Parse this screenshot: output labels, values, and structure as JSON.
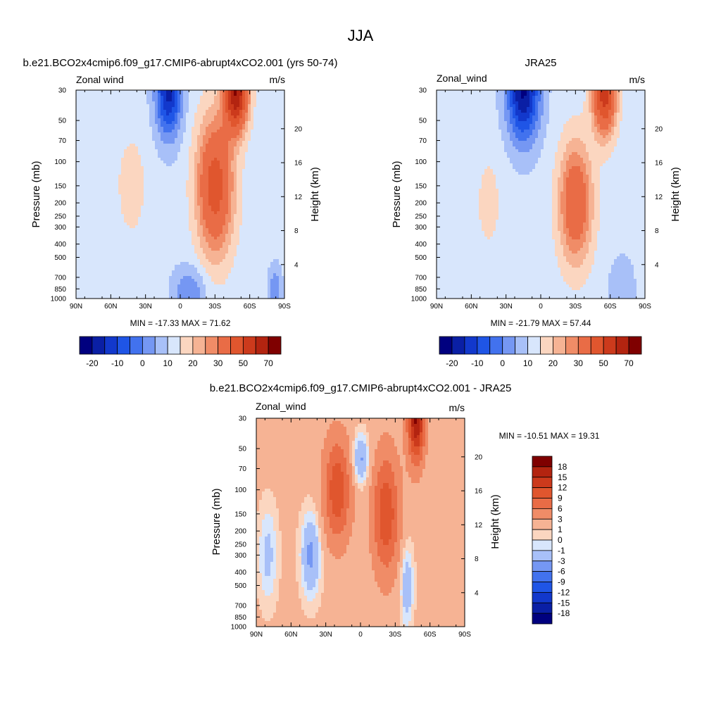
{
  "figure": {
    "title": "JJA"
  },
  "colors": {
    "neg": [
      "#00007f",
      "#0a1fa5",
      "#1238cc",
      "#1f55e6",
      "#4272ee",
      "#7597f3",
      "#a8c0f8",
      "#d8e6fc"
    ],
    "zero": "#fff0e6",
    "pos": [
      "#fbd6c0",
      "#f6b394",
      "#f08c67",
      "#e96c46",
      "#e0562e",
      "#cc3a1c",
      "#b32410",
      "#7f0000"
    ]
  },
  "chart_data": [
    {
      "type": "heatmap",
      "title": "b.e21.BCO2x4cmip6.f09_g17.CMIP6-abrupt4xCO2.001 (yrs 50-74)",
      "left_label": "Zonal wind",
      "right_label": "m/s",
      "xlabel": "",
      "ylabel": "Pressure (mb)",
      "y2label": "Height (km)",
      "x_ticks": [
        "90N",
        "60N",
        "30N",
        "0",
        "30S",
        "60S",
        "90S"
      ],
      "y_ticks": [
        "30",
        "50",
        "70",
        "100",
        "150",
        "200",
        "250",
        "300",
        "400",
        "500",
        "700",
        "850",
        "1000"
      ],
      "y2_ticks": [
        "20",
        "16",
        "12",
        "8",
        "4"
      ],
      "stats": "MIN = -17.33  MAX =  71.62",
      "min": -17.33,
      "max": 71.62,
      "colorbar_ticks": [
        "-20",
        "-10",
        "0",
        "10",
        "20",
        "30",
        "50",
        "70"
      ],
      "features": [
        {
          "lat": 10,
          "p": 30,
          "value": -17
        },
        {
          "lat": -48,
          "p": 30,
          "value": 70
        },
        {
          "lat": 42,
          "p": 150,
          "value": 17
        },
        {
          "lat": -30,
          "p": 150,
          "value": 45
        }
      ]
    },
    {
      "type": "heatmap",
      "title": "JRA25",
      "left_label": "Zonal_wind",
      "right_label": "m/s",
      "xlabel": "",
      "ylabel": "Pressure (mb)",
      "y2label": "Height (km)",
      "x_ticks": [
        "90N",
        "60N",
        "30N",
        "0",
        "30S",
        "60S",
        "90S"
      ],
      "y_ticks": [
        "30",
        "50",
        "70",
        "100",
        "150",
        "200",
        "250",
        "300",
        "400",
        "500",
        "700",
        "850",
        "1000"
      ],
      "y2_ticks": [
        "20",
        "16",
        "12",
        "8",
        "4"
      ],
      "stats": "MIN = -21.79  MAX =  57.44",
      "min": -21.79,
      "max": 57.44,
      "colorbar_ticks": [
        "-20",
        "-10",
        "0",
        "10",
        "20",
        "30",
        "50",
        "70"
      ],
      "features": [
        {
          "lat": 15,
          "p": 30,
          "value": -21
        },
        {
          "lat": -55,
          "p": 30,
          "value": 55
        },
        {
          "lat": 45,
          "p": 200,
          "value": 17
        },
        {
          "lat": -30,
          "p": 200,
          "value": 40
        }
      ]
    },
    {
      "type": "heatmap",
      "title": "b.e21.BCO2x4cmip6.f09_g17.CMIP6-abrupt4xCO2.001 - JRA25",
      "left_label": "Zonal_wind",
      "right_label": "m/s",
      "xlabel": "",
      "ylabel": "Pressure (mb)",
      "y2label": "Height (km)",
      "x_ticks": [
        "90N",
        "60N",
        "30N",
        "0",
        "30S",
        "60S",
        "90S"
      ],
      "y_ticks": [
        "30",
        "50",
        "70",
        "100",
        "150",
        "200",
        "250",
        "300",
        "400",
        "500",
        "700",
        "850",
        "1000"
      ],
      "y2_ticks": [
        "20",
        "16",
        "12",
        "8",
        "4"
      ],
      "stats": "MIN = -10.51  MAX =  19.31",
      "min": -10.51,
      "max": 19.31,
      "colorbar_ticks": [
        "18",
        "15",
        "12",
        "9",
        "6",
        "3",
        "1",
        "0",
        "-1",
        "-3",
        "-6",
        "-9",
        "-12",
        "-15",
        "-18"
      ],
      "features": [
        {
          "lat": -48,
          "p": 30,
          "value": 19
        },
        {
          "lat": 20,
          "p": 100,
          "value": 12
        },
        {
          "lat": -22,
          "p": 150,
          "value": 12
        },
        {
          "lat": 0,
          "p": 60,
          "value": -3
        },
        {
          "lat": 43,
          "p": 300,
          "value": -4
        }
      ]
    }
  ]
}
